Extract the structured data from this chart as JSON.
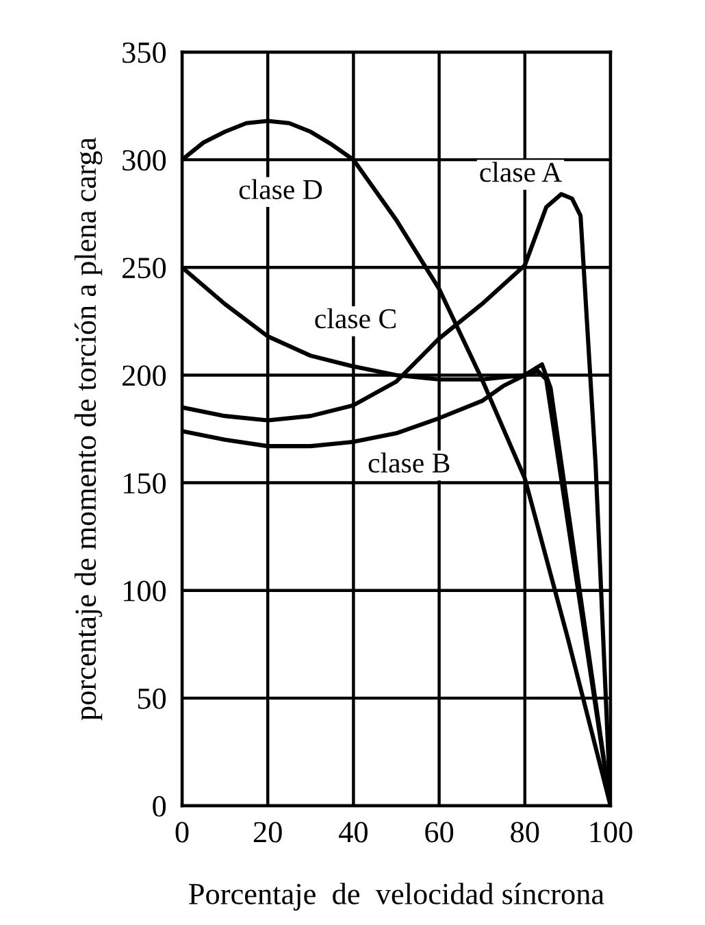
{
  "chart_data": {
    "type": "line",
    "xlabel": "Porcentaje  de  velocidad síncrona",
    "ylabel": "porcentaje de momento de torción a plena carga",
    "xlim": [
      0,
      100
    ],
    "ylim": [
      0,
      350
    ],
    "xticks": [
      0,
      20,
      40,
      60,
      80,
      100
    ],
    "yticks": [
      0,
      50,
      100,
      150,
      200,
      250,
      300,
      350
    ],
    "grid": true,
    "marker": "none",
    "line_style": "solid",
    "series": [
      {
        "name": "clase A",
        "color": "#000000",
        "x": [
          0,
          10,
          20,
          30,
          40,
          50,
          60,
          70,
          80,
          85,
          88.5,
          91,
          93,
          96.5,
          100
        ],
        "values": [
          185,
          181,
          179,
          181,
          186,
          197,
          217,
          233,
          251,
          278,
          284,
          282,
          274,
          159,
          0
        ]
      },
      {
        "name": "clase B",
        "color": "#000000",
        "x": [
          0,
          10,
          20,
          30,
          40,
          50,
          60,
          70,
          75,
          80,
          84,
          86,
          100
        ],
        "values": [
          174,
          170,
          167,
          167,
          169,
          173,
          180,
          188,
          195,
          200,
          205,
          194,
          0
        ]
      },
      {
        "name": "clase C",
        "color": "#000000",
        "x": [
          0,
          10,
          20,
          30,
          40,
          50,
          60,
          70,
          80,
          83,
          85,
          100
        ],
        "values": [
          250,
          233,
          218,
          209,
          204,
          200,
          198,
          198,
          200,
          202,
          198,
          0
        ]
      },
      {
        "name": "clase D",
        "color": "#000000",
        "x": [
          0,
          5,
          10,
          15,
          20,
          25,
          30,
          35,
          40,
          50,
          60,
          70,
          80,
          90,
          100
        ],
        "values": [
          300,
          308,
          313,
          317,
          318,
          317,
          313,
          307,
          300,
          272,
          240,
          198,
          152,
          78,
          0
        ]
      }
    ]
  }
}
